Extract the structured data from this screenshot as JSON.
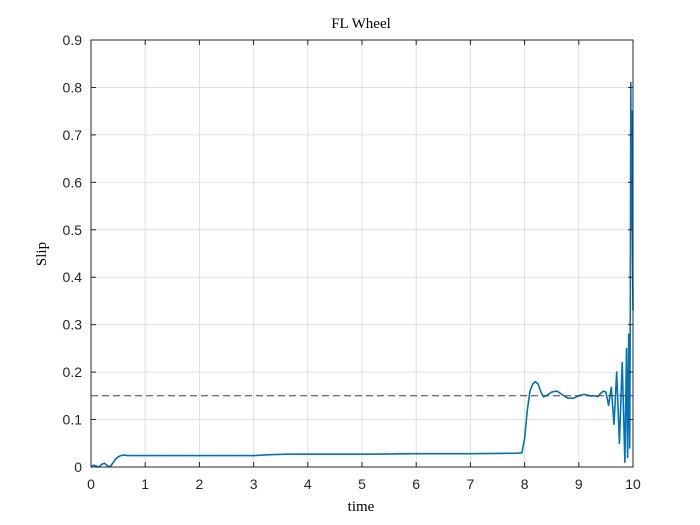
{
  "chart_data": {
    "type": "line",
    "title": "FL Wheel",
    "xlabel": "time",
    "ylabel": "Slip",
    "xlim": [
      0,
      10
    ],
    "ylim": [
      0,
      0.9
    ],
    "xticks": [
      "0",
      "1",
      "2",
      "3",
      "4",
      "5",
      "6",
      "7",
      "8",
      "9",
      "10"
    ],
    "yticks": [
      "0",
      "0.1",
      "0.2",
      "0.3",
      "0.4",
      "0.5",
      "0.6",
      "0.7",
      "0.8",
      "0.9"
    ],
    "grid": true,
    "series": [
      {
        "color": "#0072BD",
        "x": [
          0,
          0.05,
          0.1,
          0.15,
          0.2,
          0.25,
          0.3,
          0.35,
          0.4,
          0.45,
          0.5,
          0.55,
          0.6,
          0.7,
          1.0,
          2.0,
          3.0,
          3.3,
          3.6,
          4.0,
          5.0,
          6.0,
          7.0,
          7.85,
          7.95,
          8.0,
          8.05,
          8.1,
          8.15,
          8.2,
          8.25,
          8.3,
          8.35,
          8.4,
          8.5,
          8.6,
          8.7,
          8.8,
          8.9,
          9.0,
          9.1,
          9.2,
          9.3,
          9.35,
          9.4,
          9.45,
          9.5,
          9.55,
          9.6,
          9.65,
          9.7,
          9.75,
          9.8,
          9.85,
          9.88,
          9.9,
          9.92,
          9.94,
          9.95,
          9.96,
          9.97,
          9.98,
          9.99,
          10.0
        ],
        "y": [
          0,
          0.004,
          0.002,
          0.0,
          0.006,
          0.008,
          0.003,
          0.0,
          0.008,
          0.016,
          0.021,
          0.024,
          0.025,
          0.024,
          0.024,
          0.024,
          0.024,
          0.026,
          0.027,
          0.027,
          0.027,
          0.028,
          0.028,
          0.029,
          0.03,
          0.06,
          0.12,
          0.16,
          0.175,
          0.18,
          0.175,
          0.158,
          0.148,
          0.15,
          0.158,
          0.16,
          0.152,
          0.145,
          0.145,
          0.15,
          0.153,
          0.15,
          0.15,
          0.148,
          0.155,
          0.16,
          0.158,
          0.13,
          0.168,
          0.09,
          0.2,
          0.05,
          0.22,
          0.01,
          0.25,
          0.02,
          0.28,
          0.04,
          0.33,
          0.81,
          0.5,
          0.75,
          0.45,
          0.33
        ]
      },
      {
        "color": "#404040",
        "x": [
          0,
          10
        ],
        "y": [
          0.15,
          0.15
        ]
      }
    ]
  }
}
